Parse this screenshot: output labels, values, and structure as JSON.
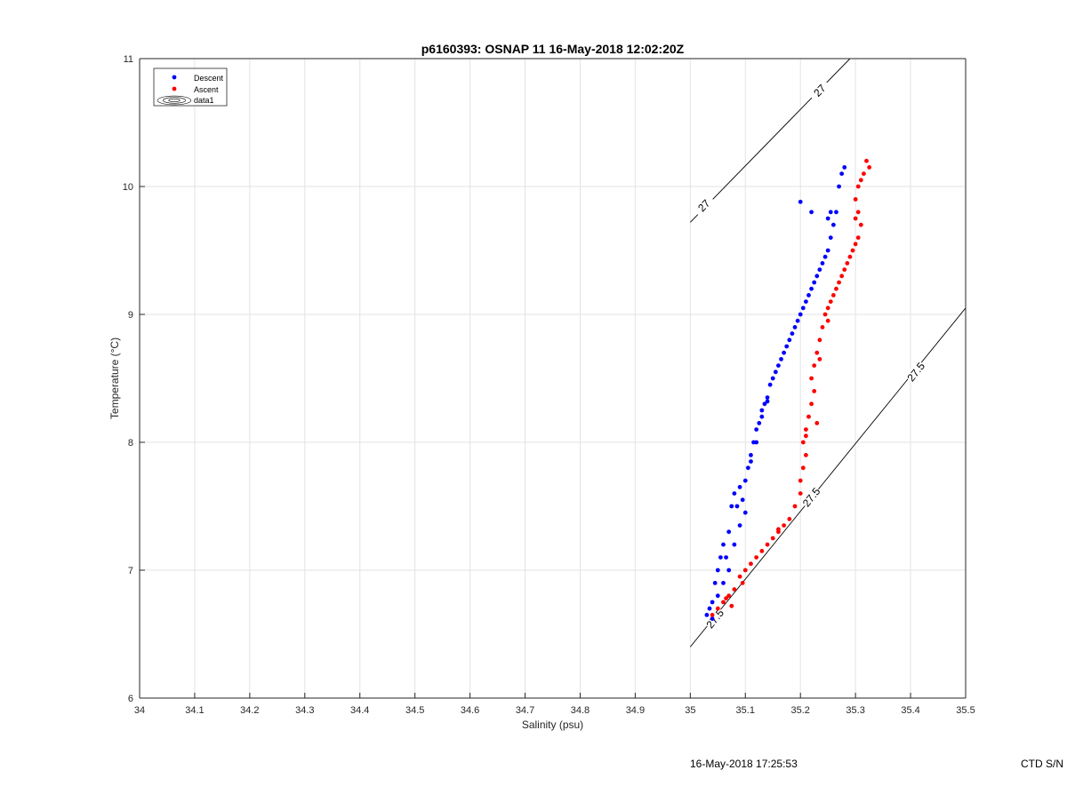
{
  "chart_data": {
    "type": "scatter",
    "title": "p6160393: OSNAP 11 16-May-2018 12:02:20Z",
    "xlabel": "Salinity (psu)",
    "ylabel": "Temperature (°C)",
    "xlim": [
      34,
      35.5
    ],
    "ylim": [
      6,
      11
    ],
    "x_ticks": [
      34,
      34.1,
      34.2,
      34.3,
      34.4,
      34.5,
      34.6,
      34.7,
      34.8,
      34.9,
      35,
      35.1,
      35.2,
      35.3,
      35.4,
      35.5
    ],
    "x_tick_labels": [
      "34",
      "34.1",
      "34.2",
      "34.3",
      "34.4",
      "34.5",
      "34.6",
      "34.7",
      "34.8",
      "34.9",
      "35",
      "35.1",
      "35.2",
      "35.3",
      "35.4",
      "35.5"
    ],
    "y_ticks": [
      6,
      7,
      8,
      9,
      10,
      11
    ],
    "y_tick_labels": [
      "6",
      "7",
      "8",
      "9",
      "10",
      "11"
    ],
    "grid": true,
    "legend_position": "top-left",
    "legend": [
      "Descent",
      "Ascent",
      "data1"
    ],
    "series": [
      {
        "name": "Descent",
        "color": "#0000ff",
        "points": [
          [
            35.03,
            6.65
          ],
          [
            35.035,
            6.7
          ],
          [
            35.04,
            6.75
          ],
          [
            35.045,
            6.9
          ],
          [
            35.05,
            7.0
          ],
          [
            35.055,
            7.1
          ],
          [
            35.06,
            7.2
          ],
          [
            35.065,
            7.1
          ],
          [
            35.07,
            7.3
          ],
          [
            35.075,
            7.5
          ],
          [
            35.08,
            7.6
          ],
          [
            35.085,
            7.5
          ],
          [
            35.09,
            7.65
          ],
          [
            35.095,
            7.55
          ],
          [
            35.1,
            7.7
          ],
          [
            35.105,
            7.8
          ],
          [
            35.11,
            7.9
          ],
          [
            35.115,
            8.0
          ],
          [
            35.12,
            8.1
          ],
          [
            35.125,
            8.15
          ],
          [
            35.13,
            8.2
          ],
          [
            35.135,
            8.3
          ],
          [
            35.14,
            8.35
          ],
          [
            35.145,
            8.45
          ],
          [
            35.15,
            8.5
          ],
          [
            35.155,
            8.55
          ],
          [
            35.16,
            8.6
          ],
          [
            35.165,
            8.65
          ],
          [
            35.17,
            8.7
          ],
          [
            35.175,
            8.75
          ],
          [
            35.18,
            8.8
          ],
          [
            35.185,
            8.85
          ],
          [
            35.19,
            8.9
          ],
          [
            35.195,
            8.95
          ],
          [
            35.2,
            9.0
          ],
          [
            35.205,
            9.05
          ],
          [
            35.21,
            9.1
          ],
          [
            35.215,
            9.15
          ],
          [
            35.22,
            9.2
          ],
          [
            35.225,
            9.25
          ],
          [
            35.23,
            9.3
          ],
          [
            35.235,
            9.35
          ],
          [
            35.24,
            9.4
          ],
          [
            35.245,
            9.45
          ],
          [
            35.25,
            9.5
          ],
          [
            35.255,
            9.6
          ],
          [
            35.26,
            9.7
          ],
          [
            35.255,
            9.8
          ],
          [
            35.25,
            9.75
          ],
          [
            35.265,
            9.8
          ],
          [
            35.27,
            10.0
          ],
          [
            35.275,
            10.1
          ],
          [
            35.28,
            10.15
          ],
          [
            35.2,
            9.88
          ],
          [
            35.22,
            9.8
          ],
          [
            35.04,
            6.62
          ],
          [
            35.05,
            6.8
          ],
          [
            35.06,
            6.9
          ],
          [
            35.07,
            7.0
          ],
          [
            35.08,
            7.2
          ],
          [
            35.09,
            7.35
          ],
          [
            35.1,
            7.45
          ],
          [
            35.11,
            7.85
          ],
          [
            35.12,
            8.0
          ],
          [
            35.13,
            8.25
          ],
          [
            35.14,
            8.32
          ]
        ]
      },
      {
        "name": "Ascent",
        "color": "#ff0000",
        "points": [
          [
            35.04,
            6.65
          ],
          [
            35.05,
            6.7
          ],
          [
            35.06,
            6.75
          ],
          [
            35.07,
            6.8
          ],
          [
            35.08,
            6.85
          ],
          [
            35.09,
            6.95
          ],
          [
            35.1,
            7.0
          ],
          [
            35.11,
            7.05
          ],
          [
            35.12,
            7.1
          ],
          [
            35.13,
            7.15
          ],
          [
            35.14,
            7.2
          ],
          [
            35.15,
            7.25
          ],
          [
            35.16,
            7.3
          ],
          [
            35.17,
            7.35
          ],
          [
            35.18,
            7.4
          ],
          [
            35.19,
            7.5
          ],
          [
            35.2,
            7.6
          ],
          [
            35.2,
            7.7
          ],
          [
            35.205,
            7.8
          ],
          [
            35.21,
            7.9
          ],
          [
            35.205,
            8.0
          ],
          [
            35.21,
            8.1
          ],
          [
            35.215,
            8.2
          ],
          [
            35.22,
            8.3
          ],
          [
            35.225,
            8.4
          ],
          [
            35.22,
            8.5
          ],
          [
            35.225,
            8.6
          ],
          [
            35.23,
            8.7
          ],
          [
            35.235,
            8.8
          ],
          [
            35.24,
            8.9
          ],
          [
            35.245,
            9.0
          ],
          [
            35.25,
            9.05
          ],
          [
            35.255,
            9.1
          ],
          [
            35.26,
            9.15
          ],
          [
            35.265,
            9.2
          ],
          [
            35.27,
            9.25
          ],
          [
            35.275,
            9.3
          ],
          [
            35.28,
            9.35
          ],
          [
            35.285,
            9.4
          ],
          [
            35.29,
            9.45
          ],
          [
            35.295,
            9.5
          ],
          [
            35.3,
            9.55
          ],
          [
            35.305,
            9.6
          ],
          [
            35.31,
            9.7
          ],
          [
            35.305,
            9.8
          ],
          [
            35.3,
            9.9
          ],
          [
            35.305,
            10.0
          ],
          [
            35.31,
            10.05
          ],
          [
            35.315,
            10.1
          ],
          [
            35.32,
            10.2
          ],
          [
            35.325,
            10.15
          ],
          [
            35.075,
            6.72
          ],
          [
            35.065,
            6.78
          ],
          [
            35.095,
            6.9
          ],
          [
            35.16,
            7.32
          ],
          [
            35.21,
            8.05
          ],
          [
            35.23,
            8.15
          ],
          [
            35.235,
            8.65
          ],
          [
            35.25,
            8.95
          ],
          [
            35.3,
            9.75
          ]
        ]
      }
    ],
    "contours": [
      {
        "label": "27",
        "from": [
          35.0,
          9.72
        ],
        "to": [
          35.29,
          11.0
        ],
        "label_positions": [
          [
            35.025,
            9.85
          ],
          [
            35.235,
            10.75
          ]
        ]
      },
      {
        "label": "27.5",
        "from": [
          35.0,
          6.4
        ],
        "to": [
          35.5,
          9.05
        ],
        "label_positions": [
          [
            35.045,
            6.62
          ],
          [
            35.22,
            7.57
          ],
          [
            35.41,
            8.55
          ]
        ]
      }
    ]
  },
  "footer": {
    "timestamp": "16-May-2018 17:25:53",
    "ctd_label": "CTD S/N"
  }
}
